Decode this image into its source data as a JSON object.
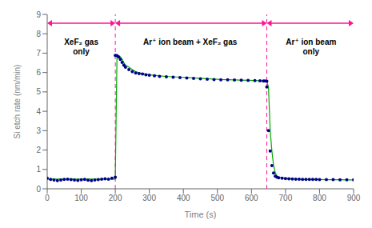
{
  "chart_data": {
    "type": "line",
    "xlabel": "Time (s)",
    "ylabel": "Si etch rate (nm/min)",
    "xlim": [
      0,
      900
    ],
    "ylim": [
      0,
      9
    ],
    "xticks": [
      0,
      100,
      200,
      300,
      400,
      500,
      600,
      700,
      800,
      900
    ],
    "yticks": [
      0,
      1,
      2,
      3,
      4,
      5,
      6,
      7,
      8,
      9
    ],
    "grid": false,
    "series": [
      {
        "type": "line",
        "color": "#00AA00",
        "line_style": "solid",
        "x": [
          0,
          200,
          200,
          205,
          210,
          215,
          220,
          225,
          230,
          240,
          250,
          260,
          270,
          280,
          290,
          300,
          315,
          330,
          350,
          370,
          390,
          410,
          430,
          450,
          470,
          490,
          510,
          530,
          550,
          570,
          590,
          610,
          625,
          635,
          640,
          645,
          645,
          650,
          655,
          660,
          665,
          670,
          675,
          680,
          690,
          700,
          710,
          720,
          730,
          740,
          750,
          760,
          770,
          780,
          790,
          800,
          820,
          840,
          860,
          880,
          900
        ],
        "values": [
          0.5,
          0.5,
          0.6,
          6.88,
          6.87,
          6.8,
          6.68,
          6.52,
          6.38,
          6.28,
          6.15,
          6.05,
          5.98,
          5.95,
          5.92,
          5.88,
          5.86,
          5.83,
          5.8,
          5.78,
          5.76,
          5.74,
          5.72,
          5.7,
          5.68,
          5.66,
          5.64,
          5.63,
          5.62,
          5.61,
          5.6,
          5.59,
          5.58,
          5.57,
          5.56,
          5.56,
          5.55,
          5.25,
          3.0,
          1.95,
          1.2,
          0.82,
          0.65,
          0.6,
          0.57,
          0.55,
          0.53,
          0.52,
          0.51,
          0.5,
          0.5,
          0.49,
          0.49,
          0.48,
          0.48,
          0.48,
          0.47,
          0.47,
          0.47,
          0.46,
          0.46
        ]
      },
      {
        "type": "scatter",
        "color": "#00008B",
        "marker": "circle",
        "x": [
          0,
          10,
          20,
          30,
          40,
          50,
          60,
          70,
          80,
          90,
          100,
          110,
          120,
          130,
          140,
          150,
          160,
          170,
          180,
          190,
          200
        ],
        "values": [
          0.55,
          0.48,
          0.45,
          0.42,
          0.45,
          0.48,
          0.5,
          0.47,
          0.45,
          0.43,
          0.46,
          0.48,
          0.44,
          0.42,
          0.45,
          0.47,
          0.5,
          0.52,
          0.5,
          0.55,
          0.6
        ]
      },
      {
        "type": "scatter",
        "color": "#00008B",
        "marker": "circle",
        "x": [
          200,
          205,
          210,
          215,
          220,
          225,
          230,
          240,
          250,
          260,
          270,
          280,
          290,
          300,
          315,
          330,
          350,
          370,
          390,
          410,
          430,
          450,
          470,
          490,
          510,
          530,
          550,
          570,
          590,
          610,
          625,
          635,
          640,
          645
        ],
        "values": [
          6.88,
          6.87,
          6.8,
          6.68,
          6.52,
          6.38,
          6.28,
          6.15,
          6.05,
          5.98,
          5.95,
          5.92,
          5.88,
          5.86,
          5.83,
          5.8,
          5.78,
          5.76,
          5.74,
          5.72,
          5.7,
          5.68,
          5.66,
          5.64,
          5.63,
          5.62,
          5.61,
          5.6,
          5.59,
          5.58,
          5.57,
          5.56,
          5.56,
          5.55
        ]
      },
      {
        "type": "scatter",
        "color": "#00008B",
        "marker": "circle",
        "x": [
          645,
          650,
          655,
          660,
          665,
          670,
          675,
          680,
          690,
          700,
          710,
          720,
          730,
          740,
          750,
          760,
          770,
          780,
          790,
          800,
          820,
          840,
          860,
          880,
          900
        ],
        "values": [
          5.25,
          3.0,
          1.95,
          1.2,
          0.82,
          0.65,
          0.6,
          0.57,
          0.55,
          0.53,
          0.52,
          0.51,
          0.5,
          0.5,
          0.49,
          0.49,
          0.48,
          0.48,
          0.48,
          0.47,
          0.47,
          0.47,
          0.46,
          0.46,
          0.46
        ]
      }
    ],
    "vlines": [
      {
        "x": 200,
        "color": "#FF1493",
        "line_style": "dashed"
      },
      {
        "x": 645,
        "color": "#FF1493",
        "line_style": "dashed"
      }
    ],
    "arrows": [
      {
        "x_start": 0,
        "x_end": 200,
        "y": 8.55,
        "color": "#FF1493"
      },
      {
        "x_start": 200,
        "x_end": 645,
        "y": 8.55,
        "color": "#FF1493"
      },
      {
        "x_start": 645,
        "x_end": 900,
        "y": 8.55,
        "color": "#FF1493"
      }
    ],
    "annotations": [
      {
        "text": "XeF₂ gas\nonly",
        "x": 100,
        "y": 7.85
      },
      {
        "text": "Ar⁺ ion beam + XeF₂ gas",
        "x": 420,
        "y": 7.85
      },
      {
        "text": "Ar⁺ ion beam\nonly",
        "x": 775,
        "y": 7.85
      }
    ]
  }
}
